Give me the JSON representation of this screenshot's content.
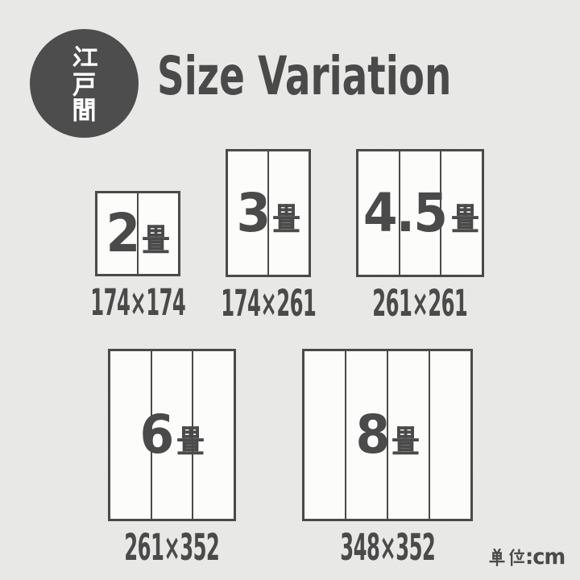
{
  "badge": {
    "label": "江戸間"
  },
  "title": "Size Variation",
  "unit_note": {
    "label": "単位:cm",
    "prefix": "単位",
    "suffix": ":cm"
  },
  "colors": {
    "ink": "#4a4a4b",
    "badge_bg": "#4d4d4d",
    "paper": "#ebebe9",
    "box_fill": "#fcfcfb",
    "badge_text": "#ffffff"
  },
  "sizes": [
    {
      "label": "2畳",
      "tatami": "2",
      "suffix": "畳",
      "dimensions": "174×174",
      "width_cm": 174,
      "height_cm": 174,
      "mats": 2
    },
    {
      "label": "3畳",
      "tatami": "3",
      "suffix": "畳",
      "dimensions": "174×261",
      "width_cm": 174,
      "height_cm": 261,
      "mats": 2
    },
    {
      "label": "4.5畳",
      "tatami": "4.5",
      "suffix": "畳",
      "dimensions": "261×261",
      "width_cm": 261,
      "height_cm": 261,
      "mats": 3
    },
    {
      "label": "6畳",
      "tatami": "6",
      "suffix": "畳",
      "dimensions": "261×352",
      "width_cm": 261,
      "height_cm": 352,
      "mats": 3
    },
    {
      "label": "8畳",
      "tatami": "8",
      "suffix": "畳",
      "dimensions": "348×352",
      "width_cm": 348,
      "height_cm": 352,
      "mats": 4
    }
  ]
}
